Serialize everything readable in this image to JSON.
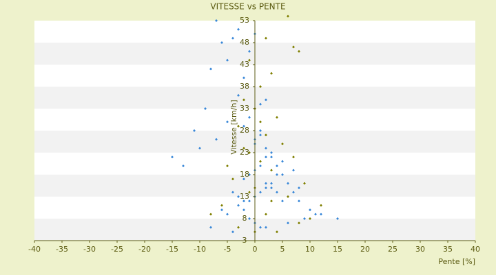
{
  "chart_data": {
    "type": "scatter",
    "title": "VITESSE vs PENTE",
    "x_label": "Pente [%]",
    "y_label": "Vitesse [km/h]",
    "xlim": [
      -40,
      40
    ],
    "xticks": [
      -40,
      -35,
      -30,
      -25,
      -20,
      -15,
      -10,
      -5,
      0,
      5,
      10,
      15,
      20,
      25,
      30,
      35,
      40
    ],
    "ylim": [
      3,
      53
    ],
    "yticks": [
      3,
      8,
      13,
      18,
      23,
      28,
      33,
      38,
      43,
      48,
      53
    ],
    "grid": true,
    "series": [
      {
        "color": "#3a88d8",
        "x": [
          -7,
          -3,
          -4,
          -6,
          -5,
          -8,
          -9,
          -11,
          -15,
          -13,
          -10,
          -7,
          -5,
          -3,
          -2,
          -1,
          0,
          1,
          2,
          3,
          4,
          5,
          6,
          7,
          8,
          10,
          12,
          15,
          -2,
          -1,
          0,
          1,
          2,
          3,
          -4,
          -3,
          -2,
          -1,
          0,
          1,
          2,
          3,
          4,
          5,
          -6,
          -5,
          -1,
          0,
          1,
          2,
          6,
          9,
          11,
          -3,
          -2,
          0,
          1,
          3,
          5,
          7,
          -8,
          -4,
          0,
          2,
          4,
          8,
          -1,
          1,
          -2,
          2
        ],
        "values": [
          53,
          51,
          49,
          48,
          44,
          42,
          33,
          28,
          22,
          20,
          24,
          26,
          30,
          36,
          40,
          46,
          50,
          28,
          24,
          22,
          20,
          18,
          16,
          14,
          12,
          10,
          9,
          8,
          17,
          18,
          19,
          20,
          16,
          15,
          14,
          13,
          12,
          12,
          13,
          14,
          15,
          16,
          14,
          12,
          10,
          9,
          8,
          7,
          6,
          6,
          7,
          8,
          9,
          11,
          10,
          25,
          27,
          23,
          21,
          19,
          6,
          5,
          26,
          22,
          18,
          15,
          31,
          34,
          29,
          35
        ]
      },
      {
        "color": "#7f7f00",
        "x": [
          6,
          2,
          7,
          8,
          -1,
          3,
          1,
          -2,
          0,
          4,
          -3,
          2,
          5,
          -1,
          1,
          3,
          -4,
          0,
          6,
          -6,
          2,
          8,
          -3,
          4,
          0,
          10,
          -8,
          12,
          -5,
          7,
          1,
          -2,
          3,
          -1,
          9
        ],
        "values": [
          54,
          49,
          47,
          46,
          44,
          41,
          38,
          35,
          33,
          31,
          29,
          27,
          25,
          23,
          21,
          19,
          17,
          15,
          13,
          11,
          9,
          7,
          6,
          5,
          5,
          8,
          9,
          11,
          20,
          22,
          30,
          24,
          12,
          14,
          16
        ]
      }
    ]
  }
}
